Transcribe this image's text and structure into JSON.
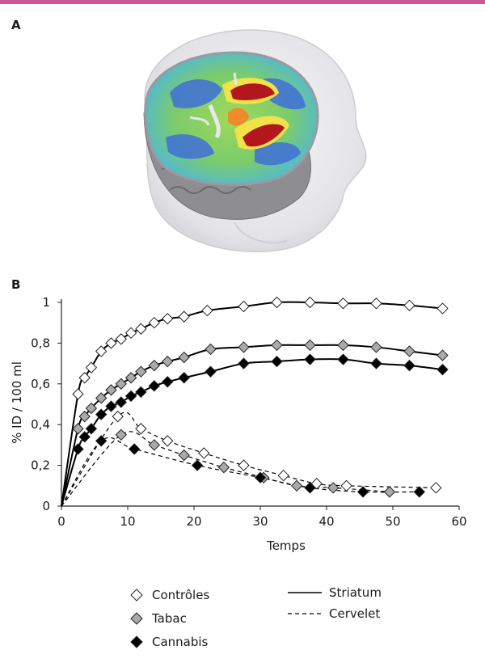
{
  "colors": {
    "top_rule": "#cc5a96",
    "controles": "#ffffff",
    "tabac": "#aaaaaa",
    "cannabis": "#000000",
    "marker_stroke": "#222222",
    "line": "#000000"
  },
  "panel_a": {
    "label": "A",
    "image": "3d-brain-pet-scan-rendering"
  },
  "panel_b": {
    "label": "B"
  },
  "chart_data": {
    "type": "scatter",
    "title": "",
    "xlabel": "Temps",
    "ylabel": "% ID / 100 ml",
    "xlim": [
      0,
      60
    ],
    "ylim": [
      0,
      1
    ],
    "x_ticks": [
      0,
      10,
      20,
      30,
      40,
      50,
      60
    ],
    "x_tick_labels": [
      "0",
      "10",
      "20",
      "30",
      "40",
      "50",
      "60"
    ],
    "y_ticks": [
      0,
      0.2,
      0.4,
      0.6,
      0.8,
      1
    ],
    "y_tick_labels": [
      "0",
      "0,2",
      "0,4",
      "0,6",
      "0,8",
      "1"
    ],
    "grid": false,
    "legend_markers": [
      {
        "label": "Contrôles",
        "marker": "diamond",
        "color": "#ffffff"
      },
      {
        "label": "Tabac",
        "marker": "diamond",
        "color": "#aaaaaa"
      },
      {
        "label": "Cannabis",
        "marker": "diamond",
        "color": "#000000"
      }
    ],
    "legend_lines": [
      {
        "label": "Striatum",
        "style": "solid"
      },
      {
        "label": "Cervelet",
        "style": "dashed"
      }
    ],
    "series": [
      {
        "group": "controles",
        "region": "striatum",
        "x": [
          2.5,
          3.5,
          4.5,
          6,
          7.5,
          9,
          10.5,
          12,
          14,
          16,
          18.5,
          22,
          27.5,
          32.5,
          37.5,
          42.5,
          47.5,
          52.5,
          57.5
        ],
        "y": [
          0.55,
          0.63,
          0.68,
          0.76,
          0.8,
          0.82,
          0.85,
          0.87,
          0.9,
          0.92,
          0.93,
          0.96,
          0.98,
          1.0,
          1.0,
          0.995,
          0.995,
          0.985,
          0.97
        ]
      },
      {
        "group": "tabac",
        "region": "striatum",
        "x": [
          2.5,
          3.5,
          4.5,
          6,
          7.5,
          9,
          10.5,
          12,
          14,
          16,
          18.5,
          22.5,
          27.5,
          32.5,
          37.5,
          42.5,
          47.5,
          52.5,
          57.5
        ],
        "y": [
          0.38,
          0.44,
          0.48,
          0.53,
          0.57,
          0.6,
          0.63,
          0.66,
          0.69,
          0.71,
          0.73,
          0.77,
          0.78,
          0.79,
          0.79,
          0.79,
          0.78,
          0.76,
          0.74
        ]
      },
      {
        "group": "cannabis",
        "region": "striatum",
        "x": [
          2.5,
          3.5,
          4.5,
          6,
          7.5,
          9,
          10.5,
          12,
          14,
          16,
          18.5,
          22.5,
          27.5,
          32.5,
          37.5,
          42.5,
          47.5,
          52.5,
          57.5
        ],
        "y": [
          0.28,
          0.34,
          0.38,
          0.45,
          0.49,
          0.51,
          0.54,
          0.56,
          0.59,
          0.61,
          0.63,
          0.66,
          0.7,
          0.71,
          0.72,
          0.72,
          0.7,
          0.69,
          0.67
        ]
      },
      {
        "group": "controles",
        "region": "cervelet",
        "x": [
          8.5,
          12,
          16,
          21.5,
          27.5,
          33.5,
          38.5,
          43,
          56.5
        ],
        "y": [
          0.44,
          0.38,
          0.32,
          0.26,
          0.2,
          0.15,
          0.11,
          0.1,
          0.09
        ]
      },
      {
        "group": "tabac",
        "region": "cervelet",
        "x": [
          9,
          14,
          18.5,
          24.5,
          30.5,
          35.5,
          41,
          49.5
        ],
        "y": [
          0.35,
          0.3,
          0.25,
          0.19,
          0.14,
          0.1,
          0.09,
          0.07
        ]
      },
      {
        "group": "cannabis",
        "region": "cervelet",
        "x": [
          6,
          11,
          20.5,
          30,
          37.5,
          45.5,
          54
        ],
        "y": [
          0.32,
          0.28,
          0.2,
          0.14,
          0.09,
          0.07,
          0.07
        ]
      }
    ]
  }
}
